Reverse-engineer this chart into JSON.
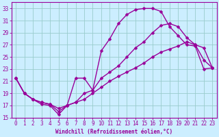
{
  "xlabel": "Windchill (Refroidissement éolien,°C)",
  "bg_color": "#cceeff",
  "line_color": "#990099",
  "grid_color": "#99cccc",
  "xlim": [
    -0.5,
    23.5
  ],
  "ylim": [
    15,
    34
  ],
  "xticks": [
    0,
    1,
    2,
    3,
    4,
    5,
    6,
    7,
    8,
    9,
    10,
    11,
    12,
    13,
    14,
    15,
    16,
    17,
    18,
    19,
    20,
    21,
    22,
    23
  ],
  "yticks": [
    15,
    17,
    19,
    21,
    23,
    25,
    27,
    29,
    31,
    33
  ],
  "line1_x": [
    0,
    1,
    2,
    3,
    4,
    5,
    6,
    7,
    8,
    9,
    10,
    11,
    12,
    13,
    14,
    15,
    16,
    17,
    18,
    19,
    20,
    21,
    22,
    23
  ],
  "line1_y": [
    21.5,
    19.0,
    18.0,
    17.2,
    17.0,
    15.5,
    17.0,
    21.5,
    21.5,
    19.5,
    26.0,
    28.0,
    30.5,
    32.0,
    32.8,
    33.0,
    33.0,
    32.5,
    30.0,
    28.5,
    27.0,
    26.8,
    23.0,
    23.2
  ],
  "line2_x": [
    0,
    1,
    2,
    3,
    4,
    5,
    6,
    7,
    8,
    9,
    10,
    11,
    12,
    13,
    14,
    15,
    16,
    17,
    18,
    19,
    20,
    21,
    22,
    23
  ],
  "line2_y": [
    21.5,
    19.0,
    18.0,
    17.5,
    17.2,
    16.5,
    17.0,
    17.5,
    18.0,
    19.0,
    20.0,
    21.0,
    21.8,
    22.5,
    23.2,
    24.0,
    25.0,
    25.8,
    26.3,
    26.8,
    27.5,
    27.0,
    24.5,
    23.2
  ],
  "line3_x": [
    0,
    1,
    2,
    3,
    4,
    5,
    6,
    7,
    8,
    9,
    10,
    11,
    12,
    13,
    14,
    15,
    16,
    17,
    18,
    19,
    20,
    21,
    22,
    23
  ],
  "line3_y": [
    21.5,
    19.0,
    18.0,
    17.5,
    17.2,
    16.0,
    17.0,
    17.5,
    19.0,
    19.5,
    21.5,
    22.5,
    23.5,
    25.0,
    26.5,
    27.5,
    29.0,
    30.2,
    30.5,
    30.0,
    28.2,
    27.0,
    26.5,
    23.2
  ],
  "tick_fontsize": 5.5,
  "xlabel_fontsize": 5.5,
  "marker_size": 2.5,
  "line_width": 1.0
}
